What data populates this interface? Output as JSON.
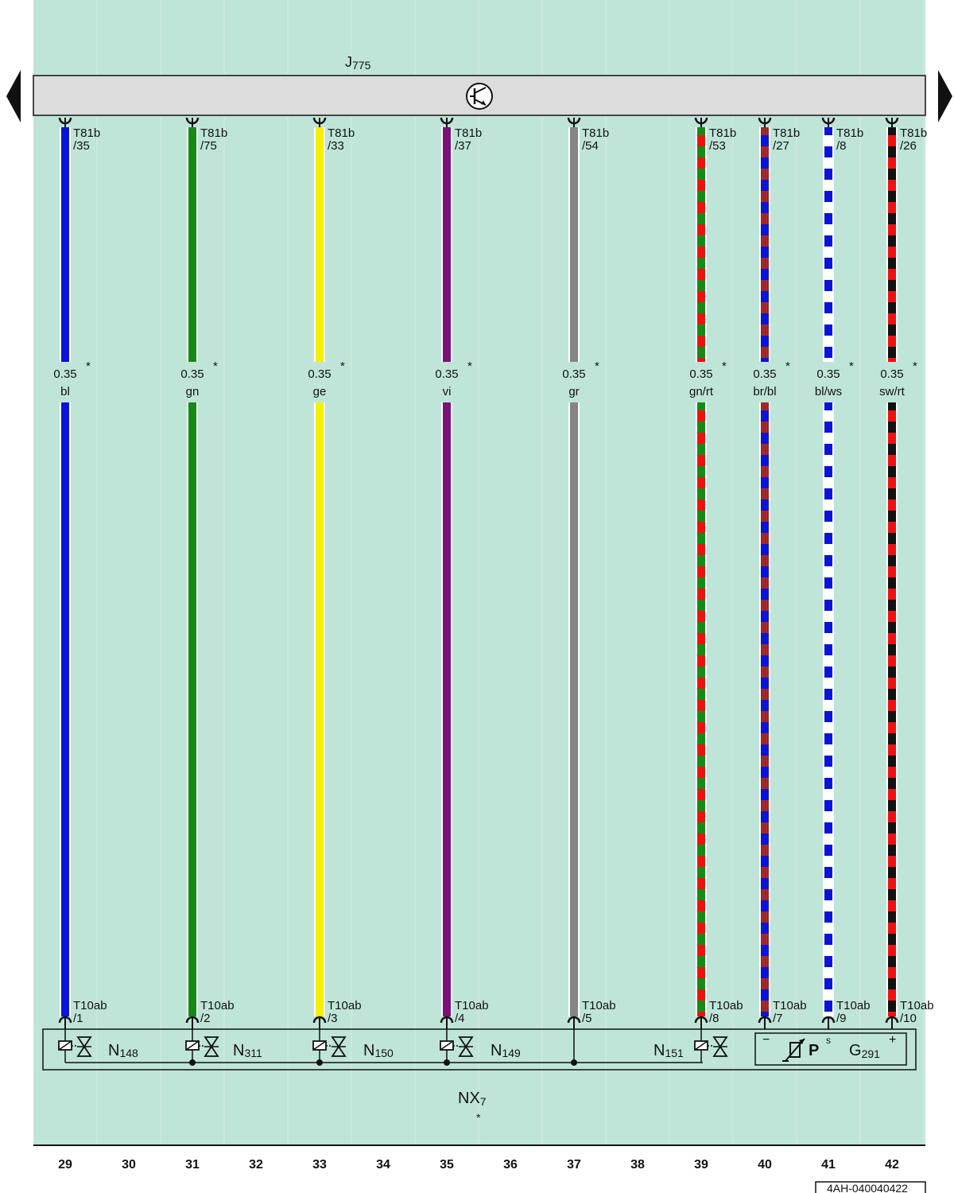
{
  "header": {
    "component": "J",
    "component_sub": "775"
  },
  "footer": {
    "connector": "NX",
    "connector_sub": "7",
    "connector_star": "*",
    "doc_id": "4AH-040040422"
  },
  "columns": [
    "29",
    "30",
    "31",
    "32",
    "33",
    "34",
    "35",
    "36",
    "37",
    "38",
    "39",
    "40",
    "41",
    "42"
  ],
  "wires": [
    {
      "top_pin": "T81b",
      "top_num": "/35",
      "gauge": "0.35",
      "star": "*",
      "color": "bl",
      "bottom_pin": "T10ab",
      "bottom_num": "/1",
      "c1": "#0a14d8",
      "c2": ""
    },
    {
      "top_pin": "T81b",
      "top_num": "/75",
      "gauge": "0.35",
      "star": "*",
      "color": "gn",
      "bottom_pin": "T10ab",
      "bottom_num": "/2",
      "c1": "#158a15",
      "c2": ""
    },
    {
      "top_pin": "T81b",
      "top_num": "/33",
      "gauge": "0.35",
      "star": "*",
      "color": "ge",
      "bottom_pin": "T10ab",
      "bottom_num": "/3",
      "c1": "#f4f000",
      "c2": ""
    },
    {
      "top_pin": "T81b",
      "top_num": "/37",
      "gauge": "0.35",
      "star": "*",
      "color": "vi",
      "bottom_pin": "T10ab",
      "bottom_num": "/4",
      "c1": "#7a127a",
      "c2": ""
    },
    {
      "top_pin": "T81b",
      "top_num": "/54",
      "gauge": "0.35",
      "star": "*",
      "color": "gr",
      "bottom_pin": "T10ab",
      "bottom_num": "/5",
      "c1": "#858585",
      "c2": ""
    },
    {
      "top_pin": "T81b",
      "top_num": "/53",
      "gauge": "0.35",
      "star": "*",
      "color": "gn/rt",
      "bottom_pin": "T10ab",
      "bottom_num": "/8",
      "c1": "#158a15",
      "c2": "#ee1111"
    },
    {
      "top_pin": "T81b",
      "top_num": "/27",
      "gauge": "0.35",
      "star": "*",
      "color": "br/bl",
      "bottom_pin": "T10ab",
      "bottom_num": "/7",
      "c1": "#a0282a",
      "c2": "#0a14d8"
    },
    {
      "top_pin": "T81b",
      "top_num": "/8",
      "gauge": "0.35",
      "star": "*",
      "color": "bl/ws",
      "bottom_pin": "T10ab",
      "bottom_num": "/9",
      "c1": "#0a14d8",
      "c2": "#ffffff"
    },
    {
      "top_pin": "T81b",
      "top_num": "/26",
      "gauge": "0.35",
      "star": "*",
      "color": "sw/rt",
      "bottom_pin": "T10ab",
      "bottom_num": "/10",
      "c1": "#111111",
      "c2": "#ee1111"
    }
  ],
  "valves": [
    {
      "name": "N",
      "sub": "148"
    },
    {
      "name": "N",
      "sub": "311"
    },
    {
      "name": "N",
      "sub": "150"
    },
    {
      "name": "N",
      "sub": "149"
    },
    {
      "name": "N",
      "sub": "151"
    }
  ],
  "sensor": {
    "name": "G",
    "sub": "291",
    "minus": "−",
    "signal": "s",
    "plus": "+",
    "symbol": "P"
  },
  "colors": {
    "background": "#bfe5d8",
    "bar": "#dcdcdc"
  }
}
